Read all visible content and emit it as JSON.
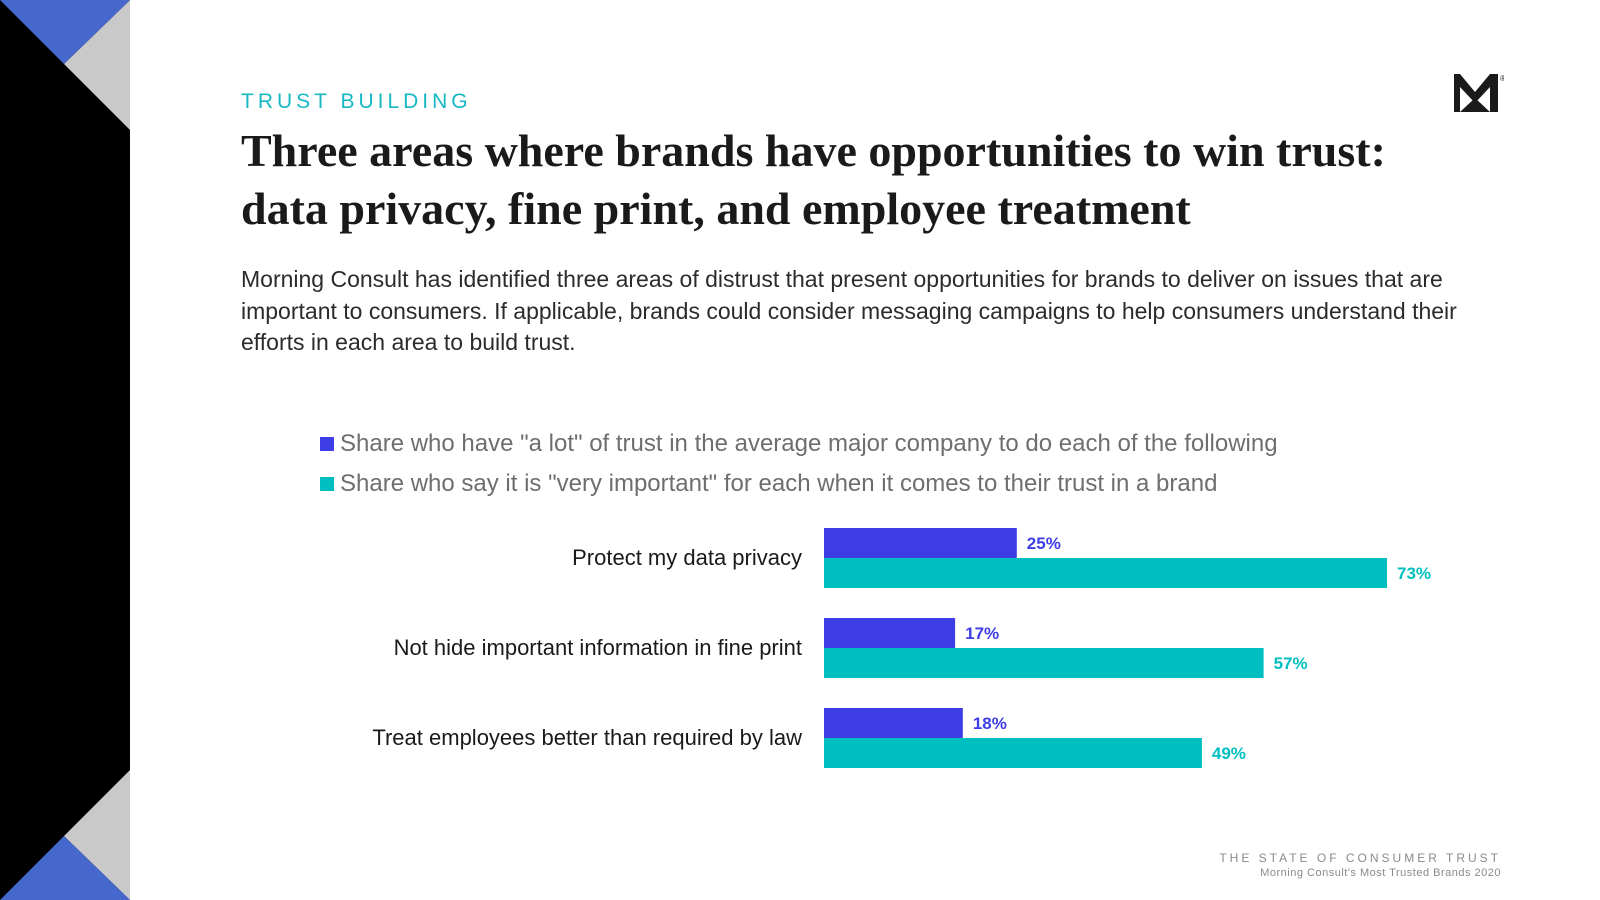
{
  "theme": {
    "accent_teal": "#1bbcc6",
    "series_purple": "#3d3de6",
    "series_teal": "#00bfc0",
    "sidebar_blue": "#4668cd",
    "sidebar_gray": "#c9c9c9",
    "sidebar_black": "#000000"
  },
  "header": {
    "eyebrow": "TRUST BUILDING",
    "title_line1": "Three areas where brands have opportunities to win trust:",
    "title_line2": "data privacy, fine print, and employee treatment",
    "logo_icon": "morning-consult-m-logo",
    "logo_mark": "®"
  },
  "intro": "Morning Consult has identified three areas of distrust that present opportunities for brands to deliver on issues that are important to consumers. If applicable, brands could consider messaging campaigns to help consumers understand their efforts in each area to build trust.",
  "chart_data": {
    "type": "bar",
    "orientation": "horizontal",
    "title": "",
    "xlabel": "",
    "ylabel": "",
    "xlim": [
      0,
      80
    ],
    "grid": false,
    "legend_position": "top",
    "categories": [
      "Protect my data privacy",
      "Not hide important information in fine print",
      "Treat employees better than required by law"
    ],
    "series": [
      {
        "name": "Share who have \"a lot\" of trust in the average major company to do each of the following",
        "color": "#3d3de6",
        "values": [
          25,
          17,
          18
        ],
        "labels": [
          "25%",
          "17%",
          "18%"
        ]
      },
      {
        "name": "Share who say it is \"very important\" for each when it comes to their trust in a brand",
        "color": "#00bfc0",
        "values": [
          73,
          57,
          49
        ],
        "labels": [
          "73%",
          "57%",
          "49%"
        ]
      }
    ]
  },
  "footer": {
    "line1": "THE STATE OF CONSUMER TRUST",
    "line2": "Morning Consult's Most Trusted Brands 2020"
  }
}
